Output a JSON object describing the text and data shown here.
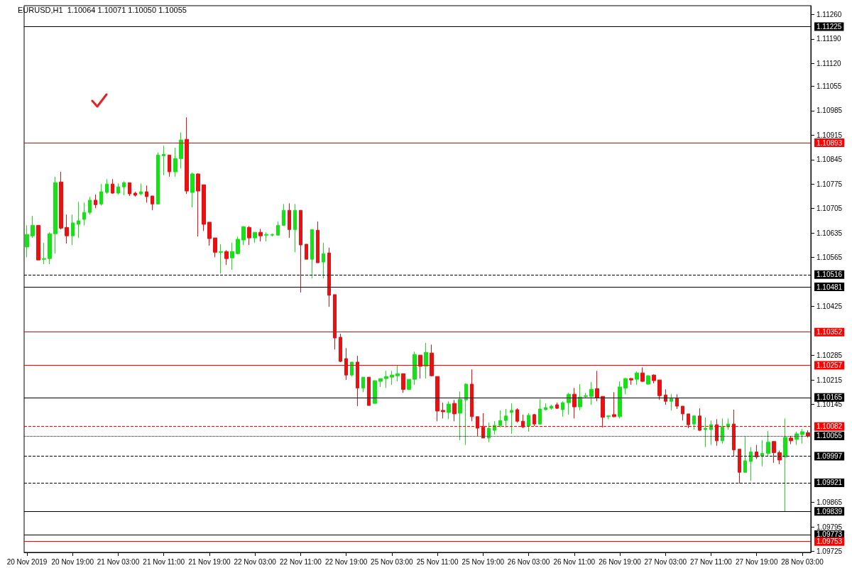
{
  "chart_data": {
    "type": "candlestick",
    "title": "EURUSD,H1  1.10064 1.10071 1.10050 1.10055",
    "categories": [
      "20 Nov 2019",
      null,
      null,
      null,
      null,
      null,
      null,
      null,
      "20 Nov 19:00",
      null,
      null,
      null,
      null,
      null,
      null,
      null,
      "21 Nov 03:00",
      null,
      null,
      null,
      null,
      null,
      null,
      null,
      "21 Nov 11:00",
      null,
      null,
      null,
      null,
      null,
      null,
      null,
      "21 Nov 19:00",
      null,
      null,
      null,
      null,
      null,
      null,
      null,
      "22 Nov 03:00",
      null,
      null,
      null,
      null,
      null,
      null,
      null,
      "22 Nov 11:00",
      null,
      null,
      null,
      null,
      null,
      null,
      null,
      "22 Nov 19:00",
      null,
      null,
      null,
      null,
      null,
      null,
      null,
      "25 Nov 03:00",
      null,
      null,
      null,
      null,
      null,
      null,
      null,
      "25 Nov 11:00",
      null,
      null,
      null,
      null,
      null,
      null,
      null,
      "25 Nov 19:00",
      null,
      null,
      null,
      null,
      null,
      null,
      null,
      "26 Nov 03:00",
      null,
      null,
      null,
      null,
      null,
      null,
      null,
      "26 Nov 11:00",
      null,
      null,
      null,
      null,
      null,
      null,
      null,
      "26 Nov 19:00",
      null,
      null,
      null,
      null,
      null,
      null,
      null,
      "27 Nov 03:00",
      null,
      null,
      null,
      null,
      null,
      null,
      null,
      "27 Nov 11:00",
      null,
      null,
      null,
      null,
      null,
      null,
      null,
      "27 Nov 19:00",
      null,
      null,
      null,
      null,
      null,
      null,
      null,
      "28 Nov 03:00",
      null
    ],
    "ohlc": [
      [
        1.10595,
        1.10657,
        1.10566,
        1.10631
      ],
      [
        1.10627,
        1.10684,
        1.10621,
        1.10657
      ],
      [
        1.10657,
        1.10657,
        1.10558,
        1.10558
      ],
      [
        1.1056,
        1.10607,
        1.10546,
        1.10562
      ],
      [
        1.10562,
        1.10637,
        1.10546,
        1.10633
      ],
      [
        1.10633,
        1.10796,
        1.10576,
        1.10779
      ],
      [
        1.10781,
        1.1081,
        1.10645,
        1.10649
      ],
      [
        1.10651,
        1.10688,
        1.10605,
        1.10627
      ],
      [
        1.10627,
        1.10688,
        1.10601,
        1.10664
      ],
      [
        1.1066,
        1.10724,
        1.10621,
        1.1067
      ],
      [
        1.10674,
        1.10722,
        1.10657,
        1.10694
      ],
      [
        1.10694,
        1.10739,
        1.10688,
        1.10729
      ],
      [
        1.10729,
        1.10745,
        1.10706,
        1.10716
      ],
      [
        1.10718,
        1.10775,
        1.10714,
        1.10753
      ],
      [
        1.10751,
        1.10789,
        1.10747,
        1.10775
      ],
      [
        1.10775,
        1.10789,
        1.10747,
        1.10749
      ],
      [
        1.10749,
        1.10777,
        1.10745,
        1.10767
      ],
      [
        1.10767,
        1.10783,
        1.10743,
        1.10779
      ],
      [
        1.10779,
        1.10779,
        1.10741,
        1.10747
      ],
      [
        1.10749,
        1.10753,
        1.10739,
        1.10743
      ],
      [
        1.10747,
        1.10777,
        1.10743,
        1.10753
      ],
      [
        1.10753,
        1.10771,
        1.10722,
        1.10739
      ],
      [
        1.10741,
        1.10741,
        1.107,
        1.10718
      ],
      [
        1.10718,
        1.10865,
        1.10718,
        1.10858
      ],
      [
        1.10856,
        1.10885,
        1.108,
        1.1086
      ],
      [
        1.10858,
        1.10858,
        1.10796,
        1.1081
      ],
      [
        1.1081,
        1.10879,
        1.10796,
        1.10848
      ],
      [
        1.10848,
        1.10923,
        1.1082,
        1.10901
      ],
      [
        1.10903,
        1.10966,
        1.10747,
        1.10755
      ],
      [
        1.10751,
        1.10808,
        1.10708,
        1.10804
      ],
      [
        1.10804,
        1.10806,
        1.10625,
        1.10755
      ],
      [
        1.10773,
        1.10773,
        1.10641,
        1.1066
      ],
      [
        1.10666,
        1.10666,
        1.10599,
        1.10619
      ],
      [
        1.10621,
        1.10621,
        1.10566,
        1.1058
      ],
      [
        1.1058,
        1.10603,
        1.10519,
        1.10582
      ],
      [
        1.10582,
        1.10586,
        1.10544,
        1.10562
      ],
      [
        1.10564,
        1.10607,
        1.1053,
        1.10582
      ],
      [
        1.10576,
        1.10625,
        1.10574,
        1.10617
      ],
      [
        1.10615,
        1.10655,
        1.10601,
        1.10653
      ],
      [
        1.10651,
        1.10655,
        1.10601,
        1.10621
      ],
      [
        1.10621,
        1.10637,
        1.10607,
        1.10637
      ],
      [
        1.10637,
        1.10647,
        1.10611,
        1.10627
      ],
      [
        1.10629,
        1.10637,
        1.10611,
        1.10631
      ],
      [
        1.10629,
        1.10633,
        1.10625,
        1.10631
      ],
      [
        1.10629,
        1.10668,
        1.10627,
        1.10657
      ],
      [
        1.10657,
        1.10718,
        1.10655,
        1.107
      ],
      [
        1.107,
        1.1072,
        1.10621,
        1.10645
      ],
      [
        1.10645,
        1.10718,
        1.1058,
        1.107
      ],
      [
        1.107,
        1.107,
        1.10465,
        1.10601
      ],
      [
        1.10603,
        1.10603,
        1.1056,
        1.1056
      ],
      [
        1.1056,
        1.10645,
        1.10505,
        1.10645
      ],
      [
        1.10643,
        1.10668,
        1.1055,
        1.1055
      ],
      [
        1.10552,
        1.10607,
        1.10505,
        1.10576
      ],
      [
        1.10578,
        1.10593,
        1.10424,
        1.10457
      ],
      [
        1.10459,
        1.10459,
        1.10302,
        1.10335
      ],
      [
        1.10337,
        1.10347,
        1.10266,
        1.10268
      ],
      [
        1.10276,
        1.10306,
        1.10215,
        1.10229
      ],
      [
        1.10229,
        1.10266,
        1.10225,
        1.10266
      ],
      [
        1.10266,
        1.10284,
        1.1014,
        1.10192
      ],
      [
        1.10192,
        1.10223,
        1.1018,
        1.10223
      ],
      [
        1.10223,
        1.10223,
        1.10142,
        1.10142
      ],
      [
        1.10148,
        1.10213,
        1.10148,
        1.10213
      ],
      [
        1.10211,
        1.10219,
        1.10195,
        1.10219
      ],
      [
        1.10219,
        1.10241,
        1.10192,
        1.10225
      ],
      [
        1.10223,
        1.10241,
        1.10201,
        1.10229
      ],
      [
        1.10227,
        1.10256,
        1.10211,
        1.10233
      ],
      [
        1.10233,
        1.10233,
        1.10178,
        1.10188
      ],
      [
        1.10188,
        1.10217,
        1.10186,
        1.10217
      ],
      [
        1.10217,
        1.10296,
        1.10201,
        1.10288
      ],
      [
        1.10286,
        1.10286,
        1.10219,
        1.10254
      ],
      [
        1.10254,
        1.10321,
        1.10219,
        1.10294
      ],
      [
        1.10292,
        1.10316,
        1.10225,
        1.10227
      ],
      [
        1.10225,
        1.10225,
        1.10097,
        1.10126
      ],
      [
        1.10128,
        1.1015,
        1.10105,
        1.10124
      ],
      [
        1.10122,
        1.10154,
        1.10103,
        1.10146
      ],
      [
        1.10148,
        1.10158,
        1.10097,
        1.10118
      ],
      [
        1.1012,
        1.10182,
        1.10043,
        1.1016
      ],
      [
        1.10158,
        1.10205,
        1.10029,
        1.10203
      ],
      [
        1.10203,
        1.10245,
        1.10097,
        1.1011
      ],
      [
        1.1011,
        1.1011,
        1.10053,
        1.10077
      ],
      [
        1.10081,
        1.1012,
        1.10049,
        1.10049
      ],
      [
        1.10049,
        1.10093,
        1.10037,
        1.10077
      ],
      [
        1.10071,
        1.10097,
        1.10059,
        1.10085
      ],
      [
        1.10085,
        1.10128,
        1.10079,
        1.10099
      ],
      [
        1.10099,
        1.10132,
        1.10079,
        1.10112
      ],
      [
        1.10122,
        1.10148,
        1.10061,
        1.10128
      ],
      [
        1.1013,
        1.10134,
        1.10093,
        1.10097
      ],
      [
        1.10097,
        1.10116,
        1.10077,
        1.10081
      ],
      [
        1.10083,
        1.1012,
        1.10067,
        1.10114
      ],
      [
        1.10116,
        1.10118,
        1.10083,
        1.10089
      ],
      [
        1.10089,
        1.1016,
        1.10087,
        1.10132
      ],
      [
        1.1013,
        1.10148,
        1.10128,
        1.10136
      ],
      [
        1.10134,
        1.10144,
        1.1013,
        1.1014
      ],
      [
        1.10144,
        1.1015,
        1.10132,
        1.10134
      ],
      [
        1.1013,
        1.10154,
        1.1011,
        1.1015
      ],
      [
        1.1015,
        1.10178,
        1.10116,
        1.10174
      ],
      [
        1.10174,
        1.10192,
        1.10105,
        1.10138
      ],
      [
        1.10138,
        1.10203,
        1.10128,
        1.10166
      ],
      [
        1.10168,
        1.10178,
        1.10164,
        1.1017
      ],
      [
        1.10168,
        1.10209,
        1.10144,
        1.10188
      ],
      [
        1.1019,
        1.10241,
        1.10154,
        1.10164
      ],
      [
        1.10168,
        1.10168,
        1.10079,
        1.10108
      ],
      [
        1.1011,
        1.10114,
        1.10103,
        1.10112
      ],
      [
        1.10116,
        1.1018,
        1.10108,
        1.1011
      ],
      [
        1.1011,
        1.10211,
        1.10105,
        1.10195
      ],
      [
        1.10192,
        1.10221,
        1.10174,
        1.10219
      ],
      [
        1.10219,
        1.10221,
        1.10201,
        1.10215
      ],
      [
        1.10217,
        1.10239,
        1.10201,
        1.10235
      ],
      [
        1.10235,
        1.10251,
        1.10209,
        1.10211
      ],
      [
        1.10203,
        1.10229,
        1.10201,
        1.10227
      ],
      [
        1.10229,
        1.10231,
        1.10205,
        1.10213
      ],
      [
        1.10215,
        1.10215,
        1.10158,
        1.1017
      ],
      [
        1.10172,
        1.10188,
        1.10144,
        1.10154
      ],
      [
        1.10154,
        1.10174,
        1.10128,
        1.10162
      ],
      [
        1.10162,
        1.10174,
        1.10132,
        1.1014
      ],
      [
        1.1014,
        1.1014,
        1.10099,
        1.10118
      ],
      [
        1.10118,
        1.10118,
        1.10077,
        1.10087
      ],
      [
        1.10089,
        1.10114,
        1.10073,
        1.10112
      ],
      [
        1.10112,
        1.10134,
        1.10069,
        1.10071
      ],
      [
        1.10073,
        1.10108,
        1.10023,
        1.10077
      ],
      [
        1.10073,
        1.10099,
        1.10029,
        1.10087
      ],
      [
        1.10087,
        1.10103,
        1.10027,
        1.10041
      ],
      [
        1.10041,
        1.10105,
        1.10033,
        1.10081
      ],
      [
        1.10081,
        1.10105,
        1.10073,
        1.10089
      ],
      [
        1.10089,
        1.1013,
        1.09997,
        1.10015
      ],
      [
        1.10017,
        1.10017,
        1.09919,
        1.09951
      ],
      [
        1.09951,
        1.10053,
        1.09949,
        1.09984
      ],
      [
        1.09982,
        1.10023,
        1.09927,
        1.10009
      ],
      [
        1.10009,
        1.10029,
        1.09989,
        1.09995
      ],
      [
        1.09997,
        1.10043,
        1.09968,
        1.10005
      ],
      [
        1.10005,
        1.10069,
        1.09997,
        1.10037
      ],
      [
        1.10039,
        1.10039,
        1.09978,
        1.10007
      ],
      [
        1.10007,
        1.10013,
        1.09974,
        1.09986
      ],
      [
        1.09995,
        1.10105,
        1.09839,
        1.10051
      ],
      [
        1.10049,
        1.10055,
        1.10031,
        1.10041
      ],
      [
        1.10045,
        1.10067,
        1.10029,
        1.10061
      ],
      [
        1.10059,
        1.10075,
        1.10033,
        1.10067
      ],
      [
        1.10064,
        1.10071,
        1.1005,
        1.10055
      ]
    ],
    "colors": [
      "#16e016",
      "#16e016",
      "#e81010",
      "#16e016",
      "#16e016",
      "#16e016",
      "#e81010",
      "#e81010",
      "#16e016",
      "#16e016",
      "#16e016",
      "#16e016",
      "#e81010",
      "#16e016",
      "#16e016",
      "#e81010",
      "#16e016",
      "#16e016",
      "#e81010",
      "#e81010",
      "#16e016",
      "#e81010",
      "#e81010",
      "#16e016",
      "#16e016",
      "#e81010",
      "#16e016",
      "#16e016",
      "#e81010",
      "#16e016",
      "#e81010",
      "#e81010",
      "#e81010",
      "#e81010",
      "#16e016",
      "#e81010",
      "#16e016",
      "#16e016",
      "#16e016",
      "#e81010",
      "#16e016",
      "#e81010",
      "#16e016",
      "#16e016",
      "#16e016",
      "#16e016",
      "#e81010",
      "#16e016",
      "#e81010",
      "#e81010",
      "#16e016",
      "#e81010",
      "#16e016",
      "#e81010",
      "#e81010",
      "#e81010",
      "#e81010",
      "#16e016",
      "#e81010",
      "#16e016",
      "#e81010",
      "#16e016",
      "#16e016",
      "#16e016",
      "#16e016",
      "#16e016",
      "#e81010",
      "#16e016",
      "#16e016",
      "#e81010",
      "#16e016",
      "#e81010",
      "#e81010",
      "#e81010",
      "#16e016",
      "#e81010",
      "#16e016",
      "#16e016",
      "#e81010",
      "#e81010",
      "#e81010",
      "#16e016",
      "#16e016",
      "#16e016",
      "#16e016",
      "#16e016",
      "#e81010",
      "#e81010",
      "#16e016",
      "#e81010",
      "#16e016",
      "#16e016",
      "#16e016",
      "#e81010",
      "#16e016",
      "#16e016",
      "#e81010",
      "#16e016",
      "#16e016",
      "#16e016",
      "#e81010",
      "#e81010",
      "#16e016",
      "#e81010",
      "#16e016",
      "#16e016",
      "#e81010",
      "#16e016",
      "#e81010",
      "#16e016",
      "#e81010",
      "#e81010",
      "#e81010",
      "#16e016",
      "#e81010",
      "#e81010",
      "#e81010",
      "#16e016",
      "#e81010",
      "#16e016",
      "#16e016",
      "#e81010",
      "#16e016",
      "#16e016",
      "#e81010",
      "#e81010",
      "#16e016",
      "#16e016",
      "#e81010",
      "#16e016",
      "#16e016",
      "#e81010",
      "#e81010",
      "#16e016",
      "#e81010",
      "#16e016",
      "#16e016",
      "#e81010"
    ],
    "ylim": [
      1.09722,
      1.11285
    ],
    "yticks": [
      {
        "value": 1.1126,
        "label": "1.11260"
      },
      {
        "value": 1.1119,
        "label": "1.11190"
      },
      {
        "value": 1.1112,
        "label": "1.11120"
      },
      {
        "value": 1.11055,
        "label": "1.11055"
      },
      {
        "value": 1.10985,
        "label": "1.10985"
      },
      {
        "value": 1.10915,
        "label": "1.10915"
      },
      {
        "value": 1.10845,
        "label": "1.10845"
      },
      {
        "value": 1.10775,
        "label": "1.10775"
      },
      {
        "value": 1.10705,
        "label": "1.10705"
      },
      {
        "value": 1.10635,
        "label": "1.10635"
      },
      {
        "value": 1.10565,
        "label": "1.10565"
      },
      {
        "value": 1.10425,
        "label": "1.10425"
      },
      {
        "value": 1.10285,
        "label": "1.10285"
      },
      {
        "value": 1.10215,
        "label": "1.10215"
      },
      {
        "value": 1.10145,
        "label": "1.10145"
      },
      {
        "value": 1.09865,
        "label": "1.09865"
      },
      {
        "value": 1.09795,
        "label": "1.09795"
      },
      {
        "value": 1.09725,
        "label": "1.09725"
      }
    ],
    "ref_lines": [
      {
        "axis": "y",
        "value": 1.11225,
        "label": "1.11225",
        "color": "#000000",
        "line_style": "solid"
      },
      {
        "axis": "y",
        "value": 1.10893,
        "label": "1.10893",
        "color": "#ff0000",
        "line_style": "solid"
      },
      {
        "axis": "y",
        "value": 1.10516,
        "label": "1.10516",
        "color": "#000000",
        "line_style": "dashed"
      },
      {
        "axis": "y",
        "value": 1.10481,
        "label": "1.10481",
        "color": "#000000",
        "line_style": "solid"
      },
      {
        "axis": "y",
        "value": 1.10352,
        "label": "1.10352",
        "color": "#ff0000",
        "line_style": "solid"
      },
      {
        "axis": "y",
        "value": 1.10257,
        "label": "1.10257",
        "color": "#ff0000",
        "line_style": "solid"
      },
      {
        "axis": "y",
        "value": 1.10165,
        "label": "1.10165",
        "color": "#000000",
        "line_style": "solid"
      },
      {
        "axis": "y",
        "value": 1.10082,
        "label": "1.10082",
        "color": "#ff0000",
        "line_style": "dashed"
      },
      {
        "axis": "y",
        "value": 1.10055,
        "label": "1.10055",
        "color": "#000000",
        "line_style": "dotted"
      },
      {
        "axis": "y",
        "value": 1.09997,
        "label": "1.09997",
        "color": "#000000",
        "line_style": "dashed"
      },
      {
        "axis": "y",
        "value": 1.09921,
        "label": "1.09921",
        "color": "#000000",
        "line_style": "dashed"
      },
      {
        "axis": "y",
        "value": 1.09839,
        "label": "1.09839",
        "color": "#000000",
        "line_style": "solid"
      },
      {
        "axis": "y",
        "value": 1.09773,
        "label": "1.09773",
        "color": "#000000",
        "line_style": "solid"
      },
      {
        "axis": "y",
        "value": 1.09753,
        "label": "1.09753",
        "color": "#ff0000",
        "line_style": "solid"
      }
    ]
  }
}
